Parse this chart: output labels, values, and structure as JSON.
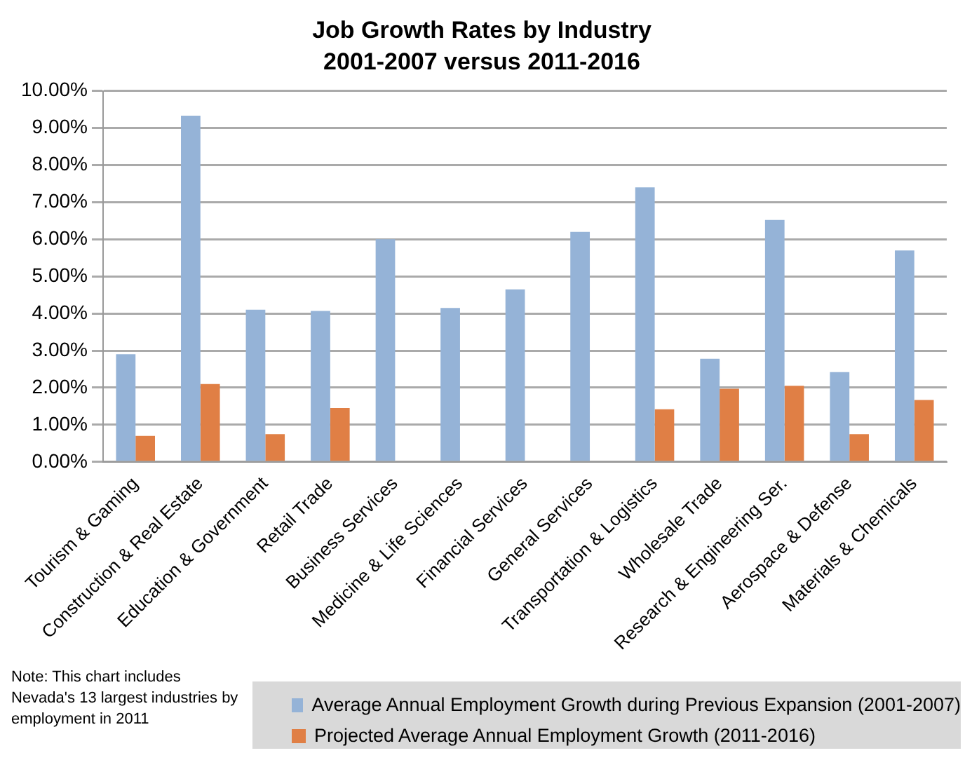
{
  "chart_data": {
    "type": "bar",
    "title": "Job Growth Rates by Industry",
    "subtitle": "2001-2007 versus 2011-2016",
    "categories": [
      "Tourism & Gaming",
      "Construction & Real Estate",
      "Education & Government",
      "Retail Trade",
      "Business Services",
      "Medicine & Life Sciences",
      "Financial Services",
      "General Services",
      "Transportation & Logistics",
      "Wholesale Trade",
      "Research & Engineering Ser.",
      "Aerospace & Defense",
      "Materials & Chemicals"
    ],
    "series": [
      {
        "name": "Average Annual Employment Growth during Previous Expansion (2001-2007)",
        "color": "#95b3d7",
        "values": [
          2.9,
          9.33,
          4.1,
          4.07,
          6.0,
          4.15,
          4.65,
          6.2,
          7.4,
          2.78,
          6.52,
          2.42,
          5.7
        ]
      },
      {
        "name": "Projected Average Annual Employment Growth (2011-2016)",
        "color": "#e07f45",
        "values": [
          0.7,
          2.1,
          0.75,
          1.45,
          null,
          null,
          null,
          null,
          1.42,
          1.97,
          2.05,
          0.75,
          1.67
        ]
      }
    ],
    "ylim": [
      0,
      10
    ],
    "yticks": [
      {
        "value": 0,
        "label": "0.00%"
      },
      {
        "value": 1,
        "label": "1.00%"
      },
      {
        "value": 2,
        "label": "2.00%"
      },
      {
        "value": 3,
        "label": "3.00%"
      },
      {
        "value": 4,
        "label": "4.00%"
      },
      {
        "value": 5,
        "label": "5.00%"
      },
      {
        "value": 6,
        "label": "6.00%"
      },
      {
        "value": 7,
        "label": "7.00%"
      },
      {
        "value": 8,
        "label": "8.00%"
      },
      {
        "value": 9,
        "label": "9.00%"
      },
      {
        "value": 10,
        "label": "10.00%"
      }
    ],
    "grid": "y",
    "legend": "bottom right",
    "annotations": [
      "Note: This chart includes Nevada's 13 largest industries by employment in 2011"
    ]
  }
}
